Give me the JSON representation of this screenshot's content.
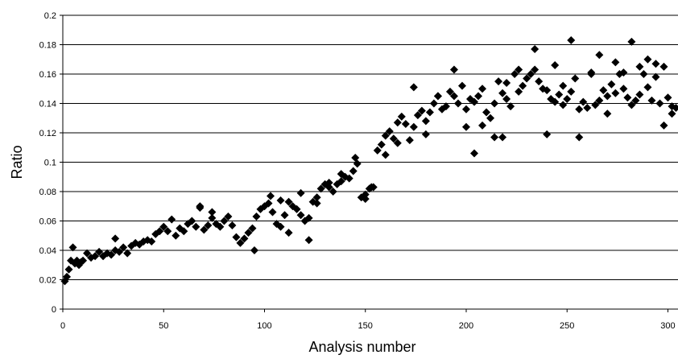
{
  "chart_data": {
    "type": "scatter",
    "title": "",
    "xlabel": "Analysis number",
    "ylabel": "Ratio",
    "xlim": [
      0,
      305
    ],
    "ylim": [
      0,
      0.2
    ],
    "x_ticks": [
      0,
      50,
      100,
      150,
      200,
      250,
      300
    ],
    "x_tick_labels": [
      "0",
      "50",
      "100",
      "150",
      "200",
      "250",
      "300"
    ],
    "y_ticks": [
      0,
      0.02,
      0.04,
      0.06,
      0.08,
      0.1,
      0.12,
      0.14,
      0.16,
      0.18,
      0.2
    ],
    "y_tick_labels": [
      "0",
      "0.02",
      "0.04",
      "0.06",
      "0.08",
      "0.1",
      "0.12",
      "0.14",
      "0.16",
      "0.18",
      "0.2"
    ],
    "grid": "horizontal",
    "legend": "none",
    "marker": "diamond",
    "marker_color": "#000000",
    "series": [
      {
        "x": [
          1,
          2,
          3,
          4,
          5,
          6,
          7,
          8,
          9,
          10,
          12,
          14,
          16,
          18,
          20,
          22,
          24,
          26,
          28,
          30,
          32,
          34,
          36,
          38,
          40,
          42,
          44,
          46,
          48,
          50,
          52,
          54,
          56,
          58,
          60,
          62,
          64,
          66,
          68,
          70,
          72,
          74,
          76,
          78,
          80,
          82,
          84,
          86,
          88,
          90,
          92,
          94,
          96,
          98,
          100,
          102,
          104,
          106,
          108,
          110,
          112,
          114,
          116,
          118,
          120,
          122,
          124,
          126,
          128,
          130,
          132,
          134,
          136,
          138,
          140,
          142,
          144,
          146,
          148,
          150,
          152,
          154,
          156,
          158,
          160,
          162,
          164,
          166,
          168,
          170,
          172,
          174,
          176,
          178,
          180,
          182,
          184,
          186,
          188,
          190,
          192,
          194,
          196,
          198,
          200,
          202,
          204,
          206,
          208,
          210,
          212,
          214,
          216,
          218,
          220,
          222,
          224,
          226,
          228,
          230,
          232,
          234,
          236,
          238,
          240,
          242,
          244,
          246,
          248,
          250,
          252,
          254,
          256,
          258,
          260,
          262,
          264,
          266,
          268,
          270,
          272,
          274,
          276,
          278,
          280,
          282,
          284,
          286,
          288,
          290,
          292,
          294,
          296,
          298,
          300,
          302,
          304
        ],
        "y": [
          0.019,
          0.022,
          0.027,
          0.033,
          0.042,
          0.031,
          0.033,
          0.03,
          0.032,
          0.033,
          0.038,
          0.035,
          0.036,
          0.039,
          0.036,
          0.038,
          0.037,
          0.04,
          0.039,
          0.042,
          0.038,
          0.043,
          0.045,
          0.044,
          0.046,
          0.047,
          0.046,
          0.051,
          0.053,
          0.056,
          0.053,
          0.061,
          0.05,
          0.055,
          0.053,
          0.058,
          0.06,
          0.056,
          0.069,
          0.054,
          0.057,
          0.062,
          0.058,
          0.056,
          0.06,
          0.063,
          0.057,
          0.049,
          0.045,
          0.048,
          0.052,
          0.055,
          0.063,
          0.068,
          0.07,
          0.072,
          0.066,
          0.058,
          0.056,
          0.064,
          0.073,
          0.07,
          0.068,
          0.064,
          0.06,
          0.062,
          0.073,
          0.076,
          0.082,
          0.085,
          0.083,
          0.08,
          0.085,
          0.087,
          0.09,
          0.089,
          0.094,
          0.099,
          0.076,
          0.078,
          0.082,
          0.083,
          0.108,
          0.112,
          0.118,
          0.121,
          0.116,
          0.127,
          0.131,
          0.126,
          0.115,
          0.124,
          0.132,
          0.135,
          0.128,
          0.134,
          0.14,
          0.145,
          0.136,
          0.138,
          0.148,
          0.145,
          0.14,
          0.152,
          0.136,
          0.143,
          0.141,
          0.145,
          0.15,
          0.134,
          0.13,
          0.14,
          0.155,
          0.147,
          0.143,
          0.138,
          0.16,
          0.148,
          0.152,
          0.157,
          0.16,
          0.163,
          0.155,
          0.15,
          0.149,
          0.143,
          0.141,
          0.146,
          0.152,
          0.143,
          0.148,
          0.157,
          0.136,
          0.141,
          0.137,
          0.16,
          0.139,
          0.142,
          0.149,
          0.145,
          0.153,
          0.147,
          0.16,
          0.15,
          0.144,
          0.139,
          0.142,
          0.165,
          0.16,
          0.17,
          0.142,
          0.158,
          0.14,
          0.165,
          0.144,
          0.138,
          0.137
        ]
      },
      {
        "x": [
          26,
          68,
          74,
          95,
          103,
          108,
          112,
          118,
          122,
          126,
          132,
          138,
          145,
          150,
          153,
          160,
          166,
          174,
          180,
          186,
          194,
          200,
          204,
          208,
          214,
          218,
          220,
          226,
          234,
          240,
          244,
          248,
          252,
          256,
          262,
          266,
          270,
          274,
          278,
          282,
          286,
          290,
          294,
          298,
          302
        ],
        "y": [
          0.048,
          0.07,
          0.066,
          0.04,
          0.077,
          0.074,
          0.052,
          0.079,
          0.047,
          0.072,
          0.086,
          0.092,
          0.103,
          0.075,
          0.083,
          0.105,
          0.113,
          0.151,
          0.119,
          0.145,
          0.163,
          0.124,
          0.106,
          0.125,
          0.117,
          0.117,
          0.154,
          0.163,
          0.177,
          0.119,
          0.166,
          0.139,
          0.183,
          0.117,
          0.161,
          0.173,
          0.133,
          0.168,
          0.161,
          0.182,
          0.146,
          0.151,
          0.167,
          0.125,
          0.133
        ]
      }
    ]
  }
}
